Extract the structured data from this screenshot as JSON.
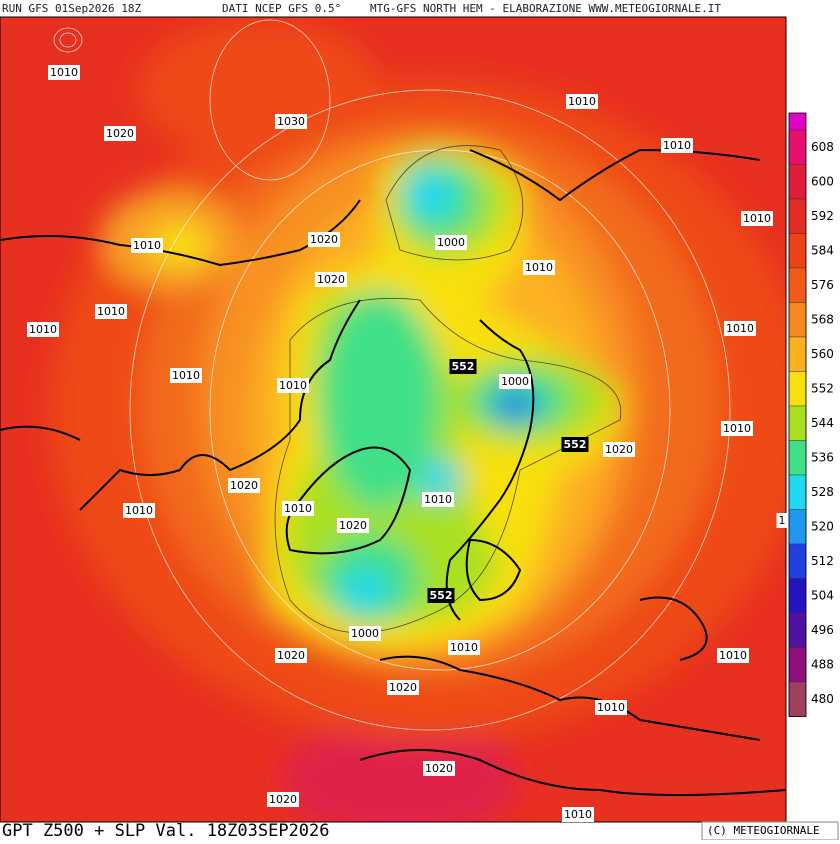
{
  "header": {
    "run": "RUN GFS 01Sep2026 18Z",
    "source": "DATI NCEP GFS 0.5°",
    "site": "MTG-GFS NORTH HEM - ELABORAZIONE WWW.METEOGIORNALE.IT"
  },
  "footer": {
    "title": "GPT Z500 + SLP Val. 18Z03SEP2026",
    "copyright": "(C) METEOGIORNALE"
  },
  "legend": [
    {
      "value": 608,
      "color": "#e8106e"
    },
    {
      "value": 600,
      "color": "#e01e3c"
    },
    {
      "value": 592,
      "color": "#e42c22"
    },
    {
      "value": 584,
      "color": "#ec4418"
    },
    {
      "value": 576,
      "color": "#f05c18"
    },
    {
      "value": 568,
      "color": "#f68820"
    },
    {
      "value": 560,
      "color": "#fcb020"
    },
    {
      "value": 552,
      "color": "#f8e010"
    },
    {
      "value": 544,
      "color": "#a8e020"
    },
    {
      "value": 536,
      "color": "#40e088"
    },
    {
      "value": 528,
      "color": "#20d8f0"
    },
    {
      "value": 520,
      "color": "#2098f0"
    },
    {
      "value": 512,
      "color": "#2040e0"
    },
    {
      "value": 504,
      "color": "#2414c0"
    },
    {
      "value": 496,
      "color": "#5012a0"
    },
    {
      "value": 488,
      "color": "#901080"
    },
    {
      "value": 480,
      "color": "#a04060"
    }
  ],
  "contour_labels": [
    1010,
    1020,
    1030,
    1010,
    1010,
    1010,
    1010,
    1020,
    1000,
    1010,
    1020,
    1010,
    1010,
    1010,
    1010,
    1010,
    552,
    1000,
    552,
    1020,
    1010,
    1020,
    1010,
    1010,
    1010,
    1020,
    1,
    552,
    1000,
    1020,
    1010,
    1010,
    1020,
    1010,
    1020,
    1020,
    1010
  ]
}
